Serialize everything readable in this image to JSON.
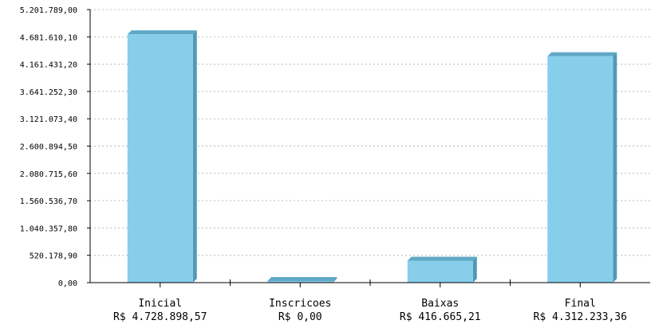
{
  "chart_data": {
    "type": "bar",
    "title": "",
    "xlabel": "",
    "ylabel": "",
    "categories": [
      "Inicial",
      "Inscricoes",
      "Baixas",
      "Final"
    ],
    "category_value_labels": [
      "R$ 4.728.898,57",
      "R$ 0,00",
      "R$ 416.665,21",
      "R$ 4.312.233,36"
    ],
    "values": [
      4728898.57,
      0,
      416665.21,
      4312233.36
    ],
    "ylim": [
      0,
      5201789
    ],
    "y_ticks": [
      0,
      520178.9,
      1040357.8,
      1560536.7,
      2080715.6,
      2600894.5,
      3121073.4,
      3641252.3,
      4161431.2,
      4681610.1,
      5201789.0
    ],
    "y_tick_labels": [
      "0,00",
      "520.178,90",
      "1.040.357,80",
      "1.560.536,70",
      "2.080.715,60",
      "2.600.894,50",
      "3.121.073,40",
      "3.641.252,30",
      "4.161.431,20",
      "4.681.610,10",
      "5.201.789,00"
    ],
    "grid": true,
    "legend": "none",
    "colors": {
      "bar_front": "#87ceeb",
      "bar_side": "#5098b8",
      "bar_top": "#5fa8c6"
    }
  }
}
